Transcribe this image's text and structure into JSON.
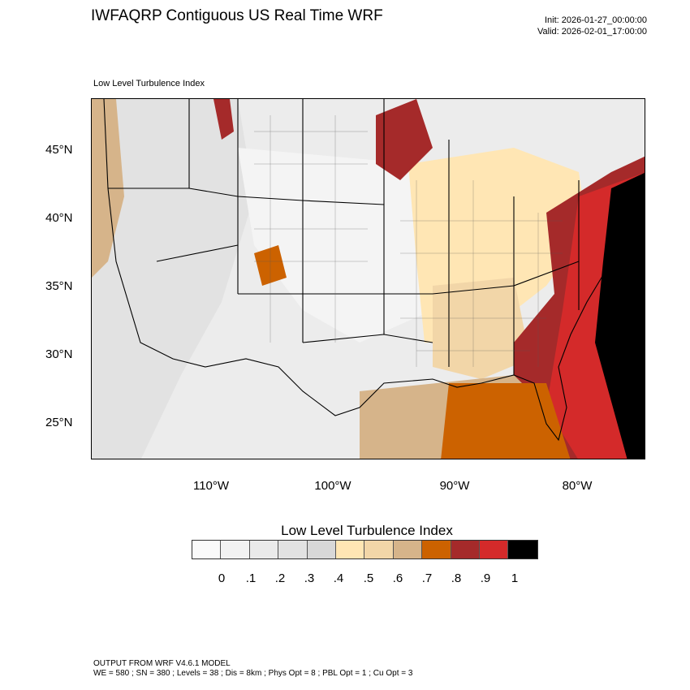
{
  "title": "IWFAQRP Contiguous US Real Time WRF",
  "init_text": "Init: 2026-01-27_00:00:00",
  "valid_text": "Valid: 2026-02-01_17:00:00",
  "field_label": "Low Level Turbulence Index",
  "lat_labels": [
    "45°N",
    "40°N",
    "35°N",
    "30°N",
    "25°N"
  ],
  "lon_labels": [
    "110°W",
    "100°W",
    "90°W",
    "80°W"
  ],
  "colorbar": {
    "title": "Low Level Turbulence Index",
    "labels": [
      "0",
      ".1",
      ".2",
      ".3",
      ".4",
      ".5",
      ".6",
      ".7",
      ".8",
      ".9",
      "1"
    ],
    "colors": [
      "#fafafa",
      "#f2f2f2",
      "#eaeaea",
      "#e2e2e2",
      "#d8d8d8",
      "#ffe6b4",
      "#f2d6a8",
      "#d6b48a",
      "#cc6200",
      "#a52a2a",
      "#d42a2a",
      "#000000"
    ]
  },
  "footer_line1": "OUTPUT FROM WRF V4.6.1 MODEL",
  "footer_line2": "WE = 580 ; SN = 380 ; Levels = 38 ; Dis = 8km ; Phys Opt = 8 ; PBL Opt = 1 ; Cu Opt = 3",
  "map_layers": {
    "ocean_east": "#d42a2a",
    "ocean_far_east": "#000000",
    "gulf_west": "#d6b48a",
    "gulf_mid": "#cc6200",
    "land_base": "#ececec",
    "southeast_band": "#ffe6b4",
    "appalachian": "#a52a2a",
    "upper_midwest": "#a52a2a"
  }
}
